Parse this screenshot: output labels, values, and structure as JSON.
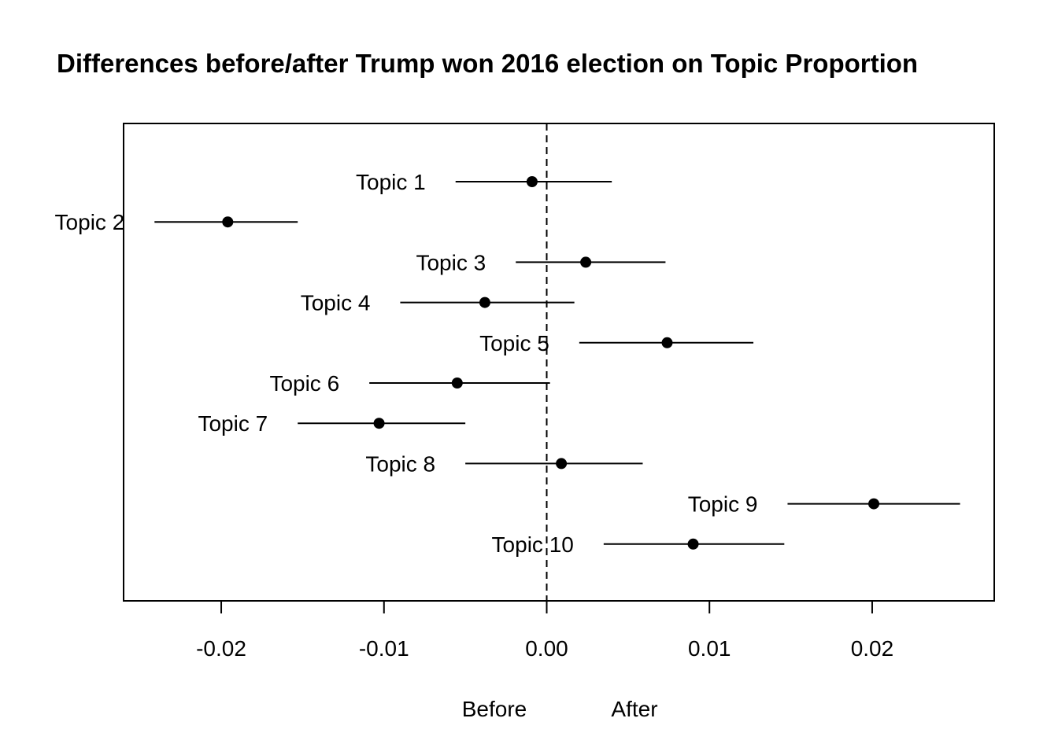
{
  "chart_data": {
    "type": "scatter",
    "subtype": "point-estimate-with-intervals",
    "title": "Differences before/after Trump won 2016 election on Topic Proportion",
    "xlabel_left": "Before",
    "xlabel_right": "After",
    "ylabel": "",
    "xlim": [
      -0.026,
      0.0275
    ],
    "x_ticks": [
      -0.02,
      -0.01,
      0.0,
      0.01,
      0.02
    ],
    "x_tick_labels": [
      "-0.02",
      "-0.01",
      "0.00",
      "0.01",
      "0.02"
    ],
    "reference_line": {
      "x": 0,
      "style": "dashed"
    },
    "grid": false,
    "legend": "none",
    "colors": {
      "points": "#000000",
      "lines": "#000000",
      "frame": "#000000"
    },
    "series": [
      {
        "name": "Topic 1",
        "estimate": -0.0009,
        "lower": -0.0056,
        "upper": 0.004
      },
      {
        "name": "Topic 2",
        "estimate": -0.0196,
        "lower": -0.0241,
        "upper": -0.0153
      },
      {
        "name": "Topic 3",
        "estimate": 0.0024,
        "lower": -0.0019,
        "upper": 0.0073
      },
      {
        "name": "Topic 4",
        "estimate": -0.0038,
        "lower": -0.009,
        "upper": 0.0017
      },
      {
        "name": "Topic 5",
        "estimate": 0.0074,
        "lower": 0.002,
        "upper": 0.0127
      },
      {
        "name": "Topic 6",
        "estimate": -0.0055,
        "lower": -0.0109,
        "upper": 0.0002
      },
      {
        "name": "Topic 7",
        "estimate": -0.0103,
        "lower": -0.0153,
        "upper": -0.005
      },
      {
        "name": "Topic 8",
        "estimate": 0.0009,
        "lower": -0.005,
        "upper": 0.0059
      },
      {
        "name": "Topic 9",
        "estimate": 0.0201,
        "lower": 0.0148,
        "upper": 0.0254
      },
      {
        "name": "Topic 10",
        "estimate": 0.009,
        "lower": 0.0035,
        "upper": 0.0146
      }
    ]
  }
}
